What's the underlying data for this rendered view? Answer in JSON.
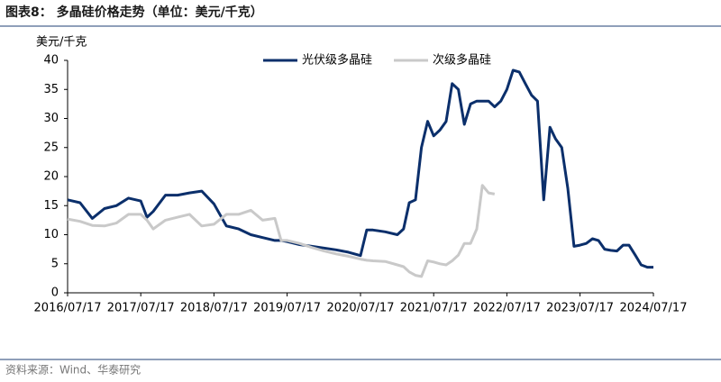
{
  "chart_data": {
    "type": "line",
    "title": "图表8： 多晶硅价格走势（单位：美元/千克）",
    "y_label": "美元/千克",
    "source": "资料来源：Wind、华泰研究",
    "legend": "top",
    "x": [
      "2016/07/17",
      "2016/09/17",
      "2016/11/17",
      "2017/01/17",
      "2017/03/17",
      "2017/05/17",
      "2017/07/17",
      "2017/08/17",
      "2017/09/17",
      "2017/11/17",
      "2018/01/17",
      "2018/03/17",
      "2018/05/17",
      "2018/07/17",
      "2018/09/17",
      "2018/11/17",
      "2019/01/17",
      "2019/03/17",
      "2019/05/17",
      "2019/06/17",
      "2019/07/17",
      "2019/09/17",
      "2019/11/17",
      "2020/01/17",
      "2020/03/17",
      "2020/05/17",
      "2020/07/17",
      "2020/08/17",
      "2020/09/17",
      "2020/11/17",
      "2021/01/17",
      "2021/02/17",
      "2021/03/17",
      "2021/04/17",
      "2021/05/17",
      "2021/06/17",
      "2021/07/17",
      "2021/08/17",
      "2021/09/17",
      "2021/10/17",
      "2021/11/17",
      "2021/12/17",
      "2022/01/17",
      "2022/02/17",
      "2022/03/17",
      "2022/04/17",
      "2022/05/17",
      "2022/06/17",
      "2022/07/17",
      "2022/08/17",
      "2022/09/17",
      "2022/10/17",
      "2022/11/17",
      "2022/12/17",
      "2023/01/17",
      "2023/02/17",
      "2023/03/17",
      "2023/04/17",
      "2023/05/17",
      "2023/06/17",
      "2023/07/17",
      "2023/08/17",
      "2023/09/17",
      "2023/10/17",
      "2023/11/17",
      "2023/12/17",
      "2024/01/17",
      "2024/02/17",
      "2024/03/17",
      "2024/04/17",
      "2024/05/17",
      "2024/06/17",
      "2024/07/17"
    ],
    "series": [
      {
        "name": "光伏级多晶硅",
        "color": "#0b2f6b",
        "values": [
          16,
          15.5,
          12.8,
          14.5,
          15,
          16.3,
          15.8,
          13,
          14,
          16.8,
          16.8,
          17.2,
          17.5,
          15.3,
          11.5,
          11,
          10,
          9.5,
          9,
          9,
          8.8,
          8.3,
          8,
          7.7,
          7.4,
          7,
          6.4,
          10.8,
          10.8,
          10.5,
          10,
          11,
          15.5,
          16,
          25,
          29.5,
          27,
          28,
          29.5,
          36,
          35,
          29,
          32.5,
          33,
          33,
          33,
          32,
          33,
          35,
          38.3,
          38,
          36,
          34,
          33,
          16,
          28.5,
          26.5,
          25,
          18,
          8,
          8.2,
          8.5,
          9.3,
          9,
          7.5,
          7.3,
          7.2,
          8.2,
          8.2,
          6.5,
          4.8,
          4.4,
          4.4
        ]
      },
      {
        "name": "次级多晶硅",
        "color": "#c9c9c9",
        "values": [
          12.7,
          12.3,
          11.6,
          11.5,
          12,
          13.5,
          13.5,
          12.5,
          11,
          12.5,
          13,
          13.5,
          11.5,
          11.8,
          13.5,
          13.5,
          14.2,
          12.5,
          12.8,
          9,
          9,
          8.5,
          7.8,
          7.2,
          6.7,
          6.3,
          5.8,
          5.6,
          5.5,
          5.4,
          4.8,
          4.5,
          3.6,
          3,
          2.8,
          5.5,
          5.3,
          5,
          4.8,
          5.5,
          6.5,
          8.5,
          8.5,
          11,
          18.5,
          17.2,
          17,
          null,
          null,
          null,
          null,
          null,
          null,
          null,
          null,
          null,
          null,
          null,
          null,
          null,
          null,
          null,
          null,
          null,
          null,
          null,
          null,
          null,
          null,
          null,
          null,
          null,
          null
        ]
      }
    ],
    "xlim": [
      "2016/07/17",
      "2024/07/17"
    ],
    "xticks": [
      "2016/07/17",
      "2017/07/17",
      "2018/07/17",
      "2019/07/17",
      "2020/07/17",
      "2021/07/17",
      "2022/07/17",
      "2023/07/17",
      "2024/07/17"
    ],
    "ylim": [
      0,
      40
    ],
    "yticks": [
      0,
      5,
      10,
      15,
      20,
      25,
      30,
      35,
      40
    ]
  }
}
